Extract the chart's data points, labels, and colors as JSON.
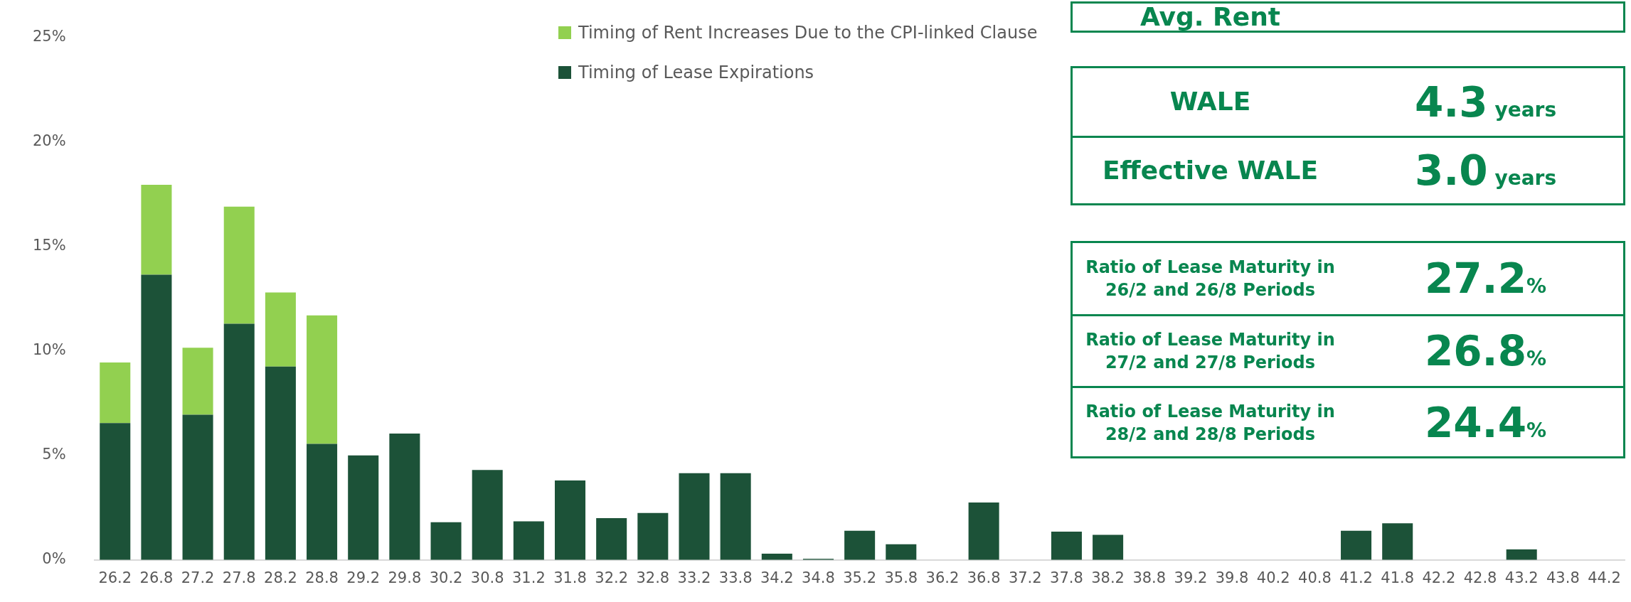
{
  "chart_data": {
    "type": "bar",
    "stacked": true,
    "legend": "top",
    "grid": false,
    "categories": [
      "26.2",
      "26.8",
      "27.2",
      "27.8",
      "28.2",
      "28.8",
      "29.2",
      "29.8",
      "30.2",
      "30.8",
      "31.2",
      "31.8",
      "32.2",
      "32.8",
      "33.2",
      "33.8",
      "34.2",
      "34.8",
      "35.2",
      "35.8",
      "36.2",
      "36.8",
      "37.2",
      "37.8",
      "38.2",
      "38.8",
      "39.2",
      "39.8",
      "40.2",
      "40.8",
      "41.2",
      "41.8",
      "42.2",
      "42.8",
      "43.2",
      "43.8",
      "44.2"
    ],
    "series": [
      {
        "name": "Timing of Lease Expirations",
        "color": "#1c5238",
        "values": [
          6.55,
          13.65,
          6.95,
          11.3,
          9.25,
          5.55,
          5.0,
          6.05,
          1.8,
          4.3,
          1.85,
          3.8,
          2.0,
          2.25,
          4.15,
          4.15,
          0.3,
          0.05,
          1.4,
          0.75,
          0,
          2.75,
          0,
          1.35,
          1.2,
          0,
          0,
          0,
          0,
          0,
          1.4,
          1.75,
          0,
          0,
          0.5,
          0,
          0
        ]
      },
      {
        "name": "Timing of Rent Increases Due to the CPI-linked Clause",
        "color": "#92d050",
        "values": [
          2.9,
          4.3,
          3.2,
          5.6,
          3.55,
          6.15,
          0,
          0,
          0,
          0,
          0,
          0,
          0,
          0,
          0,
          0,
          0,
          0,
          0,
          0,
          0,
          0,
          0,
          0,
          0,
          0,
          0,
          0,
          0,
          0,
          0,
          0,
          0,
          0,
          0,
          0,
          0
        ]
      }
    ],
    "ylim": [
      0,
      25
    ],
    "yticks": [
      {
        "value": 0,
        "label": "0%"
      },
      {
        "value": 5,
        "label": "5%"
      },
      {
        "value": 10,
        "label": "10%"
      },
      {
        "value": 15,
        "label": "15%"
      },
      {
        "value": 20,
        "label": "20%"
      },
      {
        "value": 25,
        "label": "25%"
      }
    ],
    "annotations": [
      "Avg. Rent",
      "WALE",
      "4.3 years",
      "Effective WALE",
      "3.0 years",
      "Ratio of Lease Maturity in 26/2 and 26/8 Periods",
      "27.2%",
      "Ratio of Lease Maturity in 27/2 and 27/8 Periods",
      "26.8%",
      "Ratio of Lease Maturity in 28/2 and 28/8 Periods",
      "24.4%"
    ]
  }
}
